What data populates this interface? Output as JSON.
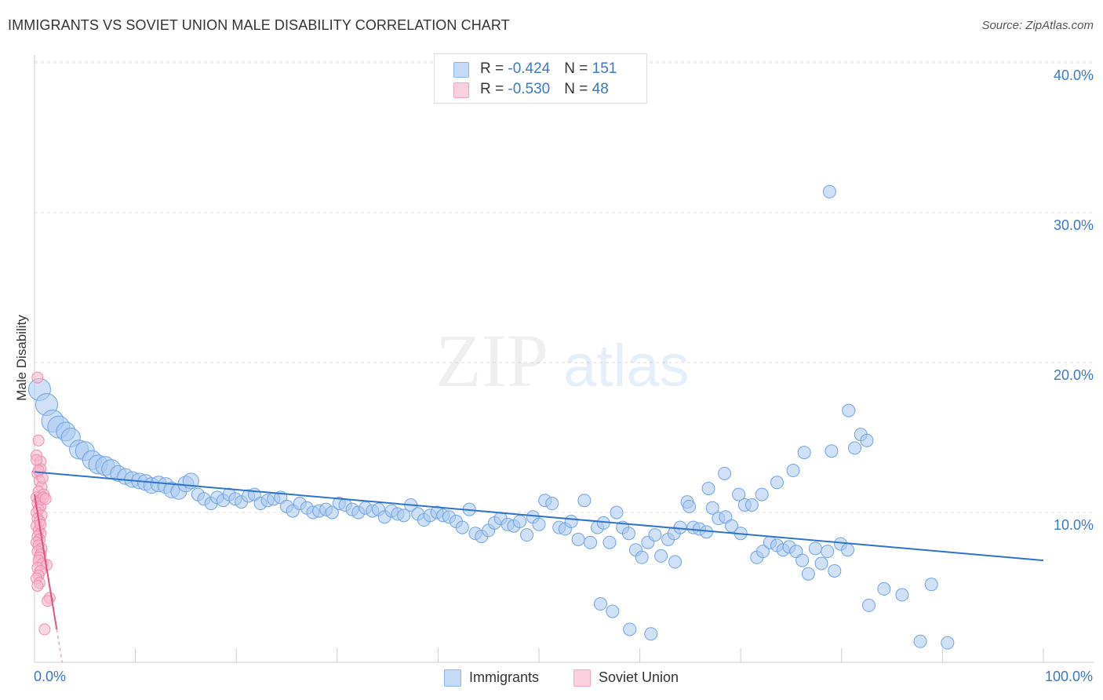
{
  "header": {
    "title": "IMMIGRANTS VS SOVIET UNION MALE DISABILITY CORRELATION CHART",
    "source": "Source: ZipAtlas.com"
  },
  "watermark": {
    "zip": "ZIP",
    "atlas": "atlas"
  },
  "legend_top": {
    "rows": [
      {
        "r_label": "R = ",
        "r_value": "-0.424",
        "n_label": "N = ",
        "n_value": "151",
        "color": "#8ab4ec"
      },
      {
        "r_label": "R = ",
        "r_value": "-0.530",
        "n_label": "N = ",
        "n_value": " 48",
        "color": "#f3a6bf"
      }
    ]
  },
  "legend_bottom": [
    {
      "label": "Immigrants",
      "color": "#8ab4ec"
    },
    {
      "label": "Soviet Union",
      "color": "#f3a6bf"
    }
  ],
  "chart_data": {
    "type": "scatter",
    "title": "IMMIGRANTS VS SOVIET UNION MALE DISABILITY CORRELATION CHART",
    "xlabel": "",
    "ylabel": "Male Disability",
    "xlim": [
      0,
      100
    ],
    "ylim": [
      0,
      42
    ],
    "x_tick_labels": [
      "0.0%",
      "100.0%"
    ],
    "y_ticks": [
      10,
      20,
      30,
      40
    ],
    "y_tick_labels": [
      "10.0%",
      "20.0%",
      "30.0%",
      "40.0%"
    ],
    "grid": true,
    "legend_position": "top-center",
    "series": [
      {
        "name": "Immigrants",
        "color": "#6fa3e6",
        "r": -0.424,
        "n": 151,
        "trend": {
          "x": [
            0,
            100
          ],
          "y": [
            12.7,
            6.8
          ]
        },
        "points": [
          [
            0.5,
            18.2
          ],
          [
            1.2,
            17.2
          ],
          [
            1.8,
            16.1
          ],
          [
            2.4,
            15.7
          ],
          [
            3.1,
            15.4
          ],
          [
            3.6,
            15.0
          ],
          [
            4.4,
            14.2
          ],
          [
            5.0,
            14.1
          ],
          [
            5.7,
            13.5
          ],
          [
            6.3,
            13.2
          ],
          [
            7.0,
            13.1
          ],
          [
            7.6,
            12.9
          ],
          [
            8.3,
            12.6
          ],
          [
            9.0,
            12.4
          ],
          [
            9.7,
            12.2
          ],
          [
            10.4,
            12.1
          ],
          [
            11.0,
            12.0
          ],
          [
            11.6,
            11.8
          ],
          [
            12.3,
            11.9
          ],
          [
            13.0,
            11.8
          ],
          [
            13.6,
            11.5
          ],
          [
            14.3,
            11.4
          ],
          [
            15.0,
            11.9
          ],
          [
            15.5,
            12.1
          ],
          [
            16.2,
            11.2
          ],
          [
            16.8,
            10.9
          ],
          [
            17.5,
            10.6
          ],
          [
            18.1,
            11.0
          ],
          [
            18.7,
            10.8
          ],
          [
            19.3,
            11.2
          ],
          [
            19.9,
            10.9
          ],
          [
            20.5,
            10.7
          ],
          [
            21.2,
            11.1
          ],
          [
            21.8,
            11.2
          ],
          [
            22.4,
            10.6
          ],
          [
            23.1,
            10.8
          ],
          [
            23.7,
            10.9
          ],
          [
            24.4,
            11.0
          ],
          [
            25.0,
            10.4
          ],
          [
            25.6,
            10.1
          ],
          [
            26.3,
            10.6
          ],
          [
            27.0,
            10.3
          ],
          [
            27.6,
            10.0
          ],
          [
            28.2,
            10.1
          ],
          [
            28.9,
            10.2
          ],
          [
            29.5,
            10.0
          ],
          [
            30.2,
            10.6
          ],
          [
            30.8,
            10.5
          ],
          [
            31.5,
            10.2
          ],
          [
            32.1,
            10.0
          ],
          [
            32.8,
            10.3
          ],
          [
            33.5,
            10.1
          ],
          [
            34.1,
            10.2
          ],
          [
            34.7,
            9.7
          ],
          [
            35.4,
            10.1
          ],
          [
            36.0,
            9.9
          ],
          [
            36.6,
            9.8
          ],
          [
            37.3,
            10.5
          ],
          [
            38.0,
            9.9
          ],
          [
            38.6,
            9.5
          ],
          [
            39.2,
            9.8
          ],
          [
            39.9,
            10.0
          ],
          [
            40.5,
            9.8
          ],
          [
            41.1,
            9.7
          ],
          [
            41.8,
            9.4
          ],
          [
            42.4,
            9.0
          ],
          [
            43.1,
            10.2
          ],
          [
            43.7,
            8.6
          ],
          [
            44.3,
            8.4
          ],
          [
            45.0,
            8.8
          ],
          [
            45.6,
            9.3
          ],
          [
            46.2,
            9.6
          ],
          [
            46.9,
            9.2
          ],
          [
            47.5,
            9.1
          ],
          [
            48.1,
            9.4
          ],
          [
            48.8,
            8.5
          ],
          [
            49.4,
            9.7
          ],
          [
            50.0,
            9.2
          ],
          [
            50.6,
            10.8
          ],
          [
            51.3,
            10.6
          ],
          [
            52.0,
            9.0
          ],
          [
            52.6,
            8.9
          ],
          [
            53.2,
            9.4
          ],
          [
            53.9,
            8.2
          ],
          [
            54.5,
            10.8
          ],
          [
            55.1,
            8.0
          ],
          [
            55.8,
            9.0
          ],
          [
            56.4,
            9.3
          ],
          [
            57.0,
            8.0
          ],
          [
            57.7,
            10.0
          ],
          [
            58.3,
            9.0
          ],
          [
            58.9,
            8.6
          ],
          [
            59.6,
            7.5
          ],
          [
            60.2,
            7.0
          ],
          [
            60.8,
            8.0
          ],
          [
            61.5,
            8.5
          ],
          [
            62.1,
            7.1
          ],
          [
            62.8,
            8.2
          ],
          [
            63.4,
            8.6
          ],
          [
            64.0,
            9.0
          ],
          [
            64.7,
            10.7
          ],
          [
            65.3,
            9.0
          ],
          [
            65.9,
            8.9
          ],
          [
            66.6,
            8.7
          ],
          [
            67.2,
            10.3
          ],
          [
            67.8,
            9.6
          ],
          [
            68.5,
            9.7
          ],
          [
            69.1,
            9.1
          ],
          [
            69.8,
            11.2
          ],
          [
            70.4,
            10.5
          ],
          [
            71.1,
            10.5
          ],
          [
            71.6,
            7.0
          ],
          [
            72.2,
            7.4
          ],
          [
            72.9,
            8.0
          ],
          [
            73.6,
            7.8
          ],
          [
            74.2,
            7.5
          ],
          [
            74.8,
            7.7
          ],
          [
            75.5,
            7.4
          ],
          [
            76.1,
            6.8
          ],
          [
            76.7,
            5.9
          ],
          [
            77.4,
            7.6
          ],
          [
            78.0,
            6.6
          ],
          [
            78.6,
            7.4
          ],
          [
            79.3,
            6.1
          ],
          [
            79.9,
            7.9
          ],
          [
            80.6,
            7.5
          ],
          [
            81.3,
            14.3
          ],
          [
            81.9,
            15.2
          ],
          [
            82.5,
            14.8
          ],
          [
            78.8,
            31.4
          ],
          [
            80.7,
            16.8
          ],
          [
            79.0,
            14.1
          ],
          [
            76.3,
            14.0
          ],
          [
            75.2,
            12.8
          ],
          [
            73.6,
            12.0
          ],
          [
            72.1,
            11.2
          ],
          [
            70.0,
            8.6
          ],
          [
            68.4,
            12.6
          ],
          [
            66.8,
            11.6
          ],
          [
            64.9,
            10.4
          ],
          [
            63.5,
            6.7
          ],
          [
            61.1,
            1.9
          ],
          [
            59.0,
            2.2
          ],
          [
            57.3,
            3.4
          ],
          [
            56.1,
            3.9
          ],
          [
            87.8,
            1.4
          ],
          [
            90.5,
            1.3
          ],
          [
            84.2,
            4.9
          ],
          [
            86.0,
            4.5
          ],
          [
            88.9,
            5.2
          ],
          [
            82.7,
            3.8
          ]
        ]
      },
      {
        "name": "Soviet Union",
        "color": "#ef8cae",
        "r": -0.53,
        "n": 48,
        "trend": {
          "x": [
            0,
            2.2
          ],
          "y": [
            11.2,
            2.2
          ]
        },
        "points": [
          [
            0.3,
            19.0
          ],
          [
            0.4,
            14.8
          ],
          [
            0.2,
            13.8
          ],
          [
            0.6,
            13.4
          ],
          [
            0.3,
            12.6
          ],
          [
            0.5,
            12.1
          ],
          [
            0.7,
            11.7
          ],
          [
            0.4,
            11.4
          ],
          [
            0.9,
            11.2
          ],
          [
            0.2,
            11.0
          ],
          [
            0.5,
            10.8
          ],
          [
            0.3,
            10.6
          ],
          [
            0.6,
            10.4
          ],
          [
            0.4,
            10.2
          ],
          [
            0.2,
            10.0
          ],
          [
            0.7,
            9.8
          ],
          [
            0.3,
            9.6
          ],
          [
            0.5,
            9.4
          ],
          [
            0.2,
            9.1
          ],
          [
            0.4,
            8.8
          ],
          [
            0.6,
            8.6
          ],
          [
            0.3,
            8.4
          ],
          [
            0.5,
            8.2
          ],
          [
            0.2,
            8.0
          ],
          [
            0.4,
            7.8
          ],
          [
            0.7,
            7.6
          ],
          [
            0.3,
            7.4
          ],
          [
            0.6,
            7.2
          ],
          [
            0.5,
            7.0
          ],
          [
            0.4,
            6.8
          ],
          [
            0.8,
            6.6
          ],
          [
            1.2,
            6.5
          ],
          [
            0.3,
            6.3
          ],
          [
            0.6,
            6.1
          ],
          [
            0.4,
            5.8
          ],
          [
            0.2,
            5.6
          ],
          [
            0.5,
            5.3
          ],
          [
            0.3,
            5.1
          ],
          [
            1.5,
            4.3
          ],
          [
            1.3,
            4.1
          ],
          [
            0.6,
            12.9
          ],
          [
            0.8,
            12.3
          ],
          [
            0.9,
            11.0
          ],
          [
            1.1,
            10.9
          ],
          [
            0.2,
            13.5
          ],
          [
            0.4,
            12.8
          ],
          [
            0.6,
            9.2
          ],
          [
            1.0,
            2.2
          ]
        ]
      }
    ]
  }
}
